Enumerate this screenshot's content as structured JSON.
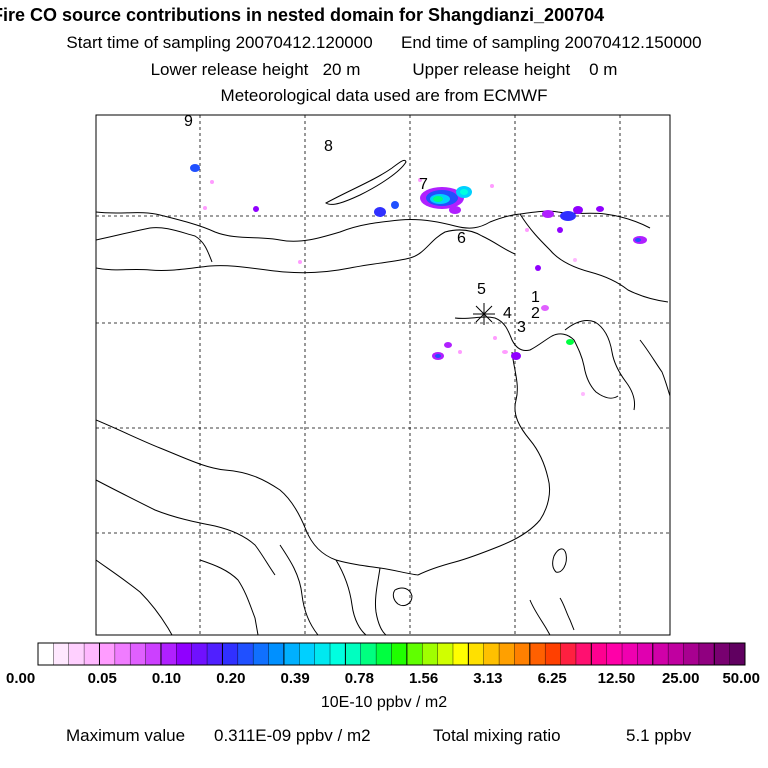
{
  "header": {
    "title": "Fire CO source contributions in nested domain for Shangdianzi_200704",
    "start_label": "Start time of sampling",
    "start_value": "20070412.120000",
    "end_label": "End time of sampling",
    "end_value": "20070412.150000",
    "lower_label": "Lower release height",
    "lower_value": "20 m",
    "upper_label": "Upper release height",
    "upper_value": "0 m",
    "met_text": "Meteorological data used are from ECMWF"
  },
  "map": {
    "site_labels": [
      "1",
      "2",
      "3",
      "4",
      "5",
      "6",
      "7",
      "8",
      "9"
    ],
    "colors": {
      "coast": "#000000",
      "grid": "#000000",
      "background": "#ffffff"
    }
  },
  "colorbar": {
    "tick_labels": [
      "0.00",
      "0.05",
      "0.10",
      "0.20",
      "0.39",
      "0.78",
      "1.56",
      "3.13",
      "6.25",
      "12.50",
      "25.00",
      "50.00"
    ],
    "units": "10E-10 ppbv / m2",
    "colors": [
      "#ffffff",
      "#ffe8ff",
      "#ffd0ff",
      "#ffb8ff",
      "#ff9cff",
      "#f07cff",
      "#e060ff",
      "#cc40ff",
      "#b020ff",
      "#9000ff",
      "#7010ff",
      "#5020ff",
      "#3030ff",
      "#2050ff",
      "#1070ff",
      "#0090ff",
      "#00b0ff",
      "#00d0ff",
      "#00e8f0",
      "#00ffe0",
      "#00ffc0",
      "#00ff80",
      "#00ff40",
      "#20ff00",
      "#60ff00",
      "#a0ff00",
      "#d0ff00",
      "#ffff00",
      "#ffe000",
      "#ffc000",
      "#ffa000",
      "#ff8000",
      "#ff6000",
      "#ff4000",
      "#ff2040",
      "#ff1070",
      "#ff0090",
      "#ff00a8",
      "#f000b0",
      "#e000b0",
      "#d000a8",
      "#c000a0",
      "#a80090",
      "#900080",
      "#780070",
      "#600060"
    ]
  },
  "footer": {
    "max_label": "Maximum value",
    "max_value": "0.311E-09 ppbv / m2",
    "total_label": "Total mixing ratio",
    "total_value": "5.1 ppbv"
  }
}
